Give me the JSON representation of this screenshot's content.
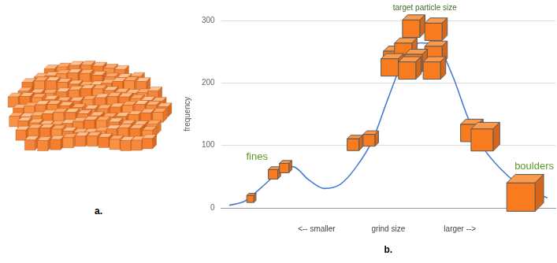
{
  "panel_labels": [
    "a.",
    "b."
  ],
  "chart_data": {
    "type": "line",
    "ylabel": "frequency",
    "xlabel": "grind size",
    "annotations": [
      "target particle size",
      "fines",
      "boulders",
      "<-- smaller",
      "larger -->"
    ],
    "categories": [
      null,
      null,
      null,
      null,
      null,
      null,
      null,
      null,
      null,
      null,
      null,
      null,
      null,
      null,
      null,
      null,
      null,
      null,
      null,
      null,
      null
    ],
    "values": [
      4,
      11,
      32,
      54,
      66,
      45,
      31,
      38,
      66,
      108,
      176,
      239,
      264,
      261,
      214,
      145,
      95,
      64,
      41,
      26,
      16
    ],
    "color": "#4a7bd2",
    "ylim": [
      0,
      300
    ],
    "yticks": [
      0,
      100,
      200,
      300
    ],
    "grid": true,
    "tick_labels": "y",
    "marker": "none",
    "line_style": "solid"
  }
}
